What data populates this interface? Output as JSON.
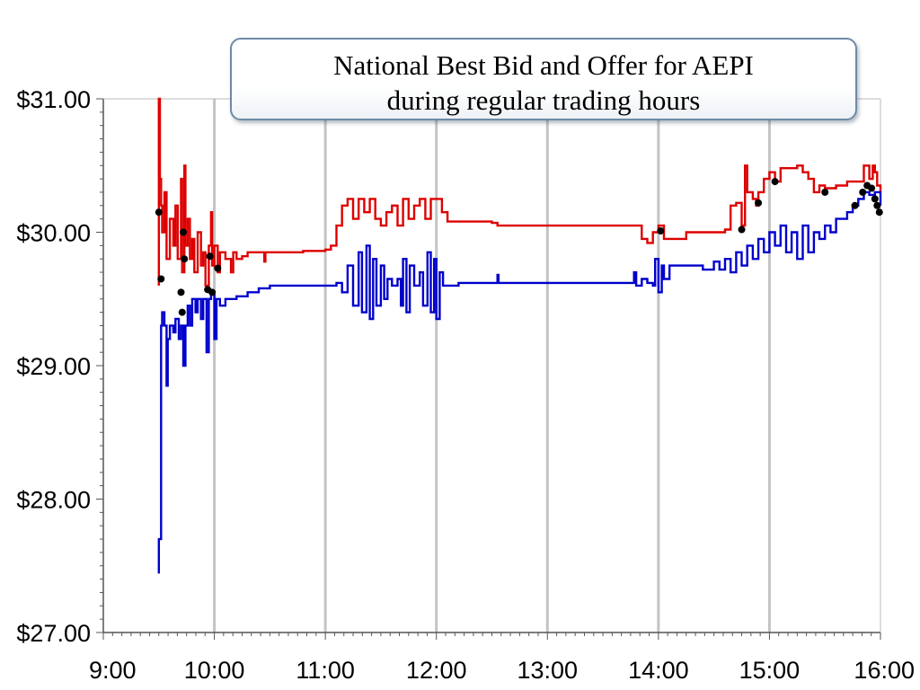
{
  "chart_data": {
    "type": "line",
    "title_lines": [
      "National Best Bid and Offer for AEPI",
      "during regular trading hours"
    ],
    "xlabel": "",
    "ylabel": "",
    "x_ticks": [
      "9:00",
      "10:00",
      "11:00",
      "12:00",
      "13:00",
      "14:00",
      "15:00",
      "16:00"
    ],
    "y_ticks": [
      "$27.00",
      "$28.00",
      "$29.00",
      "$30.00",
      "$31.00"
    ],
    "xlim_hours": [
      9.0,
      16.0
    ],
    "ylim": [
      27.0,
      31.0
    ],
    "grid": "vertical",
    "series": [
      {
        "color": "#dd0000",
        "points": [
          [
            9.5,
            29.6
          ],
          [
            9.5,
            31.0
          ],
          [
            9.51,
            30.4
          ],
          [
            9.52,
            30.2
          ],
          [
            9.53,
            30.0
          ],
          [
            9.55,
            30.3
          ],
          [
            9.57,
            29.8
          ],
          [
            9.6,
            30.1
          ],
          [
            9.63,
            29.9
          ],
          [
            9.65,
            30.2
          ],
          [
            9.67,
            29.8
          ],
          [
            9.7,
            30.4
          ],
          [
            9.71,
            29.7
          ],
          [
            9.73,
            30.5
          ],
          [
            9.74,
            29.9
          ],
          [
            9.76,
            30.1
          ],
          [
            9.78,
            29.8
          ],
          [
            9.8,
            29.95
          ],
          [
            9.82,
            29.7
          ],
          [
            9.85,
            30.0
          ],
          [
            9.88,
            29.75
          ],
          [
            9.9,
            29.85
          ],
          [
            9.92,
            29.6
          ],
          [
            9.95,
            29.9
          ],
          [
            9.97,
            30.15
          ],
          [
            9.98,
            29.75
          ],
          [
            10.0,
            29.9
          ],
          [
            10.03,
            29.7
          ],
          [
            10.05,
            29.85
          ],
          [
            10.1,
            29.8
          ],
          [
            10.15,
            29.7
          ],
          [
            10.17,
            29.85
          ],
          [
            10.2,
            29.8
          ],
          [
            10.25,
            29.82
          ],
          [
            10.3,
            29.85
          ],
          [
            10.4,
            29.85
          ],
          [
            10.45,
            29.78
          ],
          [
            10.46,
            29.85
          ],
          [
            10.6,
            29.85
          ],
          [
            10.8,
            29.86
          ],
          [
            11.0,
            29.87
          ],
          [
            11.05,
            29.9
          ],
          [
            11.1,
            30.05
          ],
          [
            11.15,
            30.2
          ],
          [
            11.2,
            30.25
          ],
          [
            11.25,
            30.1
          ],
          [
            11.3,
            30.25
          ],
          [
            11.35,
            30.15
          ],
          [
            11.4,
            30.25
          ],
          [
            11.45,
            30.1
          ],
          [
            11.5,
            30.05
          ],
          [
            11.55,
            30.15
          ],
          [
            11.6,
            30.2
          ],
          [
            11.65,
            30.05
          ],
          [
            11.7,
            30.25
          ],
          [
            11.75,
            30.1
          ],
          [
            11.8,
            30.2
          ],
          [
            11.85,
            30.25
          ],
          [
            11.9,
            30.1
          ],
          [
            11.95,
            30.25
          ],
          [
            12.0,
            30.25
          ],
          [
            12.05,
            30.15
          ],
          [
            12.1,
            30.08
          ],
          [
            12.3,
            30.08
          ],
          [
            12.5,
            30.07
          ],
          [
            12.55,
            30.05
          ],
          [
            13.0,
            30.05
          ],
          [
            13.5,
            30.05
          ],
          [
            13.8,
            30.05
          ],
          [
            13.85,
            29.95
          ],
          [
            13.9,
            29.92
          ],
          [
            13.95,
            30.0
          ],
          [
            14.0,
            30.05
          ],
          [
            14.05,
            29.95
          ],
          [
            14.2,
            29.95
          ],
          [
            14.25,
            30.0
          ],
          [
            14.5,
            30.0
          ],
          [
            14.6,
            30.02
          ],
          [
            14.65,
            30.2
          ],
          [
            14.7,
            30.22
          ],
          [
            14.75,
            30.05
          ],
          [
            14.78,
            30.5
          ],
          [
            14.8,
            30.3
          ],
          [
            14.85,
            30.25
          ],
          [
            14.88,
            30.2
          ],
          [
            14.9,
            30.3
          ],
          [
            14.95,
            30.4
          ],
          [
            15.0,
            30.45
          ],
          [
            15.05,
            30.38
          ],
          [
            15.1,
            30.48
          ],
          [
            15.2,
            30.48
          ],
          [
            15.25,
            30.5
          ],
          [
            15.3,
            30.45
          ],
          [
            15.35,
            30.4
          ],
          [
            15.4,
            30.3
          ],
          [
            15.45,
            30.35
          ],
          [
            15.5,
            30.33
          ],
          [
            15.6,
            30.35
          ],
          [
            15.7,
            30.38
          ],
          [
            15.8,
            30.38
          ],
          [
            15.85,
            30.5
          ],
          [
            15.9,
            30.4
          ],
          [
            15.93,
            30.5
          ],
          [
            15.95,
            30.45
          ],
          [
            15.97,
            30.35
          ],
          [
            16.0,
            30.3
          ]
        ]
      },
      {
        "color": "#0000cc",
        "points": [
          [
            9.49,
            27.45
          ],
          [
            9.5,
            27.7
          ],
          [
            9.51,
            27.7
          ],
          [
            9.52,
            29.3
          ],
          [
            9.53,
            29.4
          ],
          [
            9.55,
            29.3
          ],
          [
            9.57,
            28.85
          ],
          [
            9.58,
            29.2
          ],
          [
            9.6,
            29.3
          ],
          [
            9.63,
            29.25
          ],
          [
            9.65,
            29.35
          ],
          [
            9.68,
            29.2
          ],
          [
            9.7,
            29.3
          ],
          [
            9.72,
            29.0
          ],
          [
            9.74,
            29.3
          ],
          [
            9.76,
            29.45
          ],
          [
            9.78,
            29.3
          ],
          [
            9.8,
            29.5
          ],
          [
            9.83,
            29.4
          ],
          [
            9.85,
            29.5
          ],
          [
            9.88,
            29.35
          ],
          [
            9.9,
            29.5
          ],
          [
            9.93,
            29.1
          ],
          [
            9.95,
            29.5
          ],
          [
            9.97,
            29.55
          ],
          [
            10.0,
            29.2
          ],
          [
            10.02,
            29.5
          ],
          [
            10.05,
            29.45
          ],
          [
            10.1,
            29.5
          ],
          [
            10.2,
            29.52
          ],
          [
            10.3,
            29.55
          ],
          [
            10.4,
            29.58
          ],
          [
            10.5,
            29.6
          ],
          [
            10.7,
            29.6
          ],
          [
            10.9,
            29.6
          ],
          [
            11.0,
            29.6
          ],
          [
            11.1,
            29.62
          ],
          [
            11.15,
            29.55
          ],
          [
            11.2,
            29.75
          ],
          [
            11.25,
            29.45
          ],
          [
            11.3,
            29.85
          ],
          [
            11.33,
            29.4
          ],
          [
            11.37,
            29.9
          ],
          [
            11.4,
            29.35
          ],
          [
            11.43,
            29.8
          ],
          [
            11.46,
            29.45
          ],
          [
            11.5,
            29.75
          ],
          [
            11.53,
            29.5
          ],
          [
            11.56,
            29.65
          ],
          [
            11.6,
            29.6
          ],
          [
            11.65,
            29.65
          ],
          [
            11.68,
            29.45
          ],
          [
            11.7,
            29.8
          ],
          [
            11.73,
            29.4
          ],
          [
            11.76,
            29.75
          ],
          [
            11.8,
            29.6
          ],
          [
            11.85,
            29.7
          ],
          [
            11.88,
            29.45
          ],
          [
            11.92,
            29.85
          ],
          [
            11.95,
            29.4
          ],
          [
            11.98,
            29.8
          ],
          [
            12.0,
            29.35
          ],
          [
            12.03,
            29.7
          ],
          [
            12.06,
            29.6
          ],
          [
            12.2,
            29.62
          ],
          [
            12.5,
            29.62
          ],
          [
            12.55,
            29.68
          ],
          [
            12.56,
            29.62
          ],
          [
            13.0,
            29.62
          ],
          [
            13.5,
            29.62
          ],
          [
            13.75,
            29.62
          ],
          [
            13.78,
            29.7
          ],
          [
            13.8,
            29.6
          ],
          [
            13.85,
            29.65
          ],
          [
            13.9,
            29.62
          ],
          [
            13.95,
            29.6
          ],
          [
            13.97,
            29.8
          ],
          [
            14.0,
            29.55
          ],
          [
            14.03,
            29.75
          ],
          [
            14.05,
            29.65
          ],
          [
            14.1,
            29.75
          ],
          [
            14.3,
            29.75
          ],
          [
            14.4,
            29.72
          ],
          [
            14.5,
            29.78
          ],
          [
            14.55,
            29.72
          ],
          [
            14.6,
            29.8
          ],
          [
            14.65,
            29.7
          ],
          [
            14.7,
            29.85
          ],
          [
            14.75,
            29.75
          ],
          [
            14.8,
            29.9
          ],
          [
            14.85,
            29.8
          ],
          [
            14.9,
            29.95
          ],
          [
            14.95,
            29.85
          ],
          [
            15.0,
            30.0
          ],
          [
            15.05,
            29.9
          ],
          [
            15.1,
            30.05
          ],
          [
            15.15,
            29.85
          ],
          [
            15.2,
            30.0
          ],
          [
            15.25,
            29.8
          ],
          [
            15.3,
            30.05
          ],
          [
            15.35,
            29.85
          ],
          [
            15.4,
            30.0
          ],
          [
            15.45,
            29.95
          ],
          [
            15.5,
            30.05
          ],
          [
            15.55,
            30.0
          ],
          [
            15.6,
            30.1
          ],
          [
            15.7,
            30.15
          ],
          [
            15.75,
            30.2
          ],
          [
            15.8,
            30.25
          ],
          [
            15.85,
            30.3
          ],
          [
            15.9,
            30.28
          ],
          [
            15.95,
            30.3
          ],
          [
            16.0,
            30.2
          ]
        ]
      }
    ],
    "trade_points": {
      "color": "#000000",
      "points": [
        [
          9.5,
          30.15
        ],
        [
          9.52,
          29.65
        ],
        [
          9.7,
          29.55
        ],
        [
          9.71,
          29.4
        ],
        [
          9.72,
          30.0
        ],
        [
          9.73,
          29.8
        ],
        [
          9.94,
          29.57
        ],
        [
          9.96,
          29.82
        ],
        [
          9.98,
          29.55
        ],
        [
          10.03,
          29.73
        ],
        [
          14.02,
          30.01
        ],
        [
          14.75,
          30.02
        ],
        [
          14.9,
          30.22
        ],
        [
          15.05,
          30.38
        ],
        [
          15.5,
          30.3
        ],
        [
          15.77,
          30.2
        ],
        [
          15.84,
          30.3
        ],
        [
          15.88,
          30.35
        ],
        [
          15.92,
          30.33
        ],
        [
          15.95,
          30.25
        ],
        [
          15.97,
          30.2
        ],
        [
          15.99,
          30.15
        ]
      ]
    }
  }
}
